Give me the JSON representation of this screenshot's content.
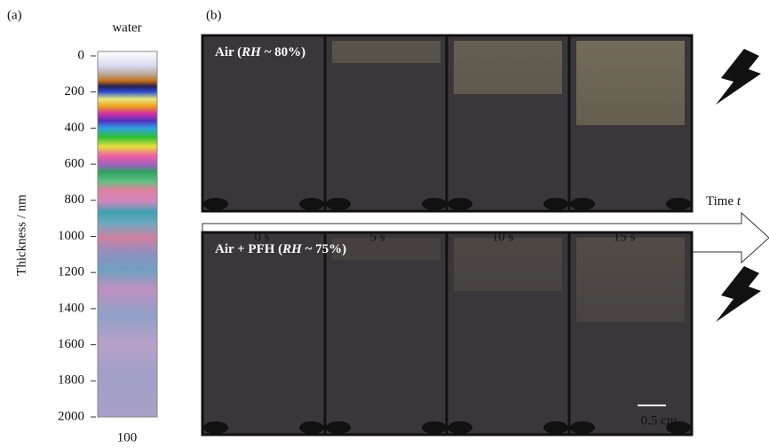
{
  "panel_a": {
    "label": "(a)",
    "title": "water",
    "axis_label": "Thickness / nm",
    "ylim": [
      0,
      2000
    ],
    "yticks": [
      0,
      200,
      400,
      600,
      800,
      1000,
      1200,
      1400,
      1600,
      1800,
      2000
    ],
    "bottom_label": "100"
  },
  "panel_b": {
    "label": "(b)",
    "rows": [
      {
        "label_start": "Air (",
        "label_italic": "RH",
        "label_end": " ~ 80%)"
      },
      {
        "label_start": "Air + PFH (",
        "label_italic": "RH",
        "label_end": " ~ 75%)"
      }
    ],
    "time_label": "Time ",
    "time_symbol": "t",
    "times": [
      "0 s",
      "5 s",
      "10 s",
      "15 s"
    ],
    "scale_bar": "0.5 cm"
  }
}
